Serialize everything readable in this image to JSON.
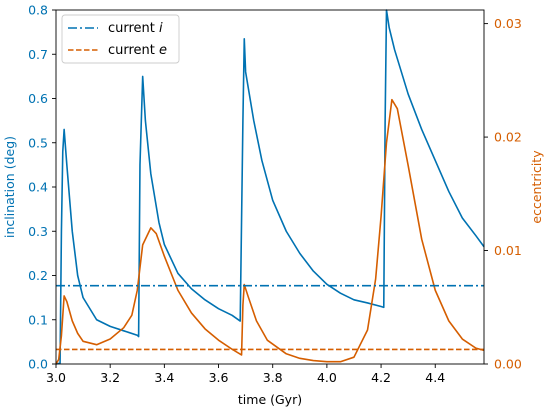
{
  "chart_data": {
    "type": "line",
    "xlabel": "time (Gyr)",
    "ylabel_left": "inclination (deg)",
    "ylabel_right": "eccentricity",
    "xlim": [
      3.0,
      4.58
    ],
    "ylim_left": [
      0.0,
      0.8
    ],
    "ylim_right": [
      0.0,
      0.0312
    ],
    "grid": false,
    "legend_position": "upper-left",
    "colors": {
      "left_axis": "#0072B2",
      "right_axis": "#D55E00"
    },
    "x_ticks": [
      "3.0",
      "3.2",
      "3.4",
      "3.6",
      "3.8",
      "4.0",
      "4.2",
      "4.4"
    ],
    "y_ticks_left": [
      "0.0",
      "0.1",
      "0.2",
      "0.3",
      "0.4",
      "0.5",
      "0.6",
      "0.7",
      "0.8"
    ],
    "y_ticks_right": [
      "0.00",
      "0.01",
      "0.02",
      "0.03"
    ],
    "legend": [
      {
        "label": "current ",
        "symbol": "i",
        "style": "dashdot",
        "color": "#0072B2"
      },
      {
        "label": "current ",
        "symbol": "e",
        "style": "dashed",
        "color": "#D55E00"
      }
    ],
    "series": [
      {
        "name": "inclination",
        "axis": "left",
        "color": "#0072B2",
        "style": "solid",
        "points": [
          [
            3.0,
            0.0
          ],
          [
            3.015,
            0.002
          ],
          [
            3.02,
            0.3
          ],
          [
            3.025,
            0.48
          ],
          [
            3.03,
            0.53
          ],
          [
            3.04,
            0.45
          ],
          [
            3.06,
            0.3
          ],
          [
            3.08,
            0.2
          ],
          [
            3.1,
            0.15
          ],
          [
            3.15,
            0.1
          ],
          [
            3.2,
            0.085
          ],
          [
            3.25,
            0.075
          ],
          [
            3.3,
            0.065
          ],
          [
            3.305,
            0.062
          ],
          [
            3.31,
            0.45
          ],
          [
            3.32,
            0.65
          ],
          [
            3.33,
            0.55
          ],
          [
            3.35,
            0.43
          ],
          [
            3.38,
            0.32
          ],
          [
            3.4,
            0.27
          ],
          [
            3.45,
            0.205
          ],
          [
            3.5,
            0.17
          ],
          [
            3.55,
            0.145
          ],
          [
            3.6,
            0.125
          ],
          [
            3.65,
            0.11
          ],
          [
            3.68,
            0.097
          ],
          [
            3.69,
            0.55
          ],
          [
            3.695,
            0.735
          ],
          [
            3.7,
            0.66
          ],
          [
            3.73,
            0.55
          ],
          [
            3.76,
            0.46
          ],
          [
            3.8,
            0.37
          ],
          [
            3.85,
            0.3
          ],
          [
            3.9,
            0.25
          ],
          [
            3.95,
            0.21
          ],
          [
            4.0,
            0.18
          ],
          [
            4.05,
            0.16
          ],
          [
            4.1,
            0.145
          ],
          [
            4.15,
            0.138
          ],
          [
            4.2,
            0.13
          ],
          [
            4.21,
            0.128
          ],
          [
            4.215,
            0.55
          ],
          [
            4.22,
            0.8
          ],
          [
            4.23,
            0.76
          ],
          [
            4.25,
            0.71
          ],
          [
            4.3,
            0.61
          ],
          [
            4.35,
            0.53
          ],
          [
            4.4,
            0.46
          ],
          [
            4.45,
            0.39
          ],
          [
            4.5,
            0.33
          ],
          [
            4.55,
            0.29
          ],
          [
            4.58,
            0.265
          ]
        ]
      },
      {
        "name": "eccentricity",
        "axis": "right",
        "color": "#D55E00",
        "style": "solid",
        "points": [
          [
            3.0,
            0.0
          ],
          [
            3.01,
            0.0004
          ],
          [
            3.02,
            0.0025
          ],
          [
            3.03,
            0.006
          ],
          [
            3.04,
            0.0055
          ],
          [
            3.06,
            0.0038
          ],
          [
            3.08,
            0.0027
          ],
          [
            3.1,
            0.002
          ],
          [
            3.15,
            0.0017
          ],
          [
            3.2,
            0.0022
          ],
          [
            3.25,
            0.0032
          ],
          [
            3.28,
            0.0043
          ],
          [
            3.3,
            0.0065
          ],
          [
            3.32,
            0.0105
          ],
          [
            3.35,
            0.012
          ],
          [
            3.37,
            0.0115
          ],
          [
            3.4,
            0.0095
          ],
          [
            3.45,
            0.0065
          ],
          [
            3.5,
            0.0045
          ],
          [
            3.55,
            0.0031
          ],
          [
            3.6,
            0.0021
          ],
          [
            3.65,
            0.0013
          ],
          [
            3.685,
            0.0008
          ],
          [
            3.69,
            0.0052
          ],
          [
            3.695,
            0.007
          ],
          [
            3.71,
            0.0059
          ],
          [
            3.74,
            0.0038
          ],
          [
            3.78,
            0.0021
          ],
          [
            3.85,
            0.0009
          ],
          [
            3.9,
            0.0005
          ],
          [
            3.95,
            0.0003
          ],
          [
            4.0,
            0.0002
          ],
          [
            4.05,
            0.0002
          ],
          [
            4.1,
            0.0006
          ],
          [
            4.15,
            0.003
          ],
          [
            4.18,
            0.0075
          ],
          [
            4.2,
            0.013
          ],
          [
            4.22,
            0.0195
          ],
          [
            4.24,
            0.0233
          ],
          [
            4.26,
            0.0225
          ],
          [
            4.3,
            0.0175
          ],
          [
            4.35,
            0.011
          ],
          [
            4.4,
            0.0065
          ],
          [
            4.45,
            0.0038
          ],
          [
            4.5,
            0.0022
          ],
          [
            4.55,
            0.0014
          ],
          [
            4.58,
            0.0012
          ]
        ]
      },
      {
        "name": "current i",
        "axis": "left",
        "color": "#0072B2",
        "style": "dashdot",
        "points": [
          [
            3.0,
            0.177
          ],
          [
            4.58,
            0.177
          ]
        ]
      },
      {
        "name": "current e",
        "axis": "right",
        "color": "#D55E00",
        "style": "dashed",
        "points": [
          [
            3.0,
            0.00128
          ],
          [
            4.58,
            0.00128
          ]
        ]
      }
    ]
  }
}
